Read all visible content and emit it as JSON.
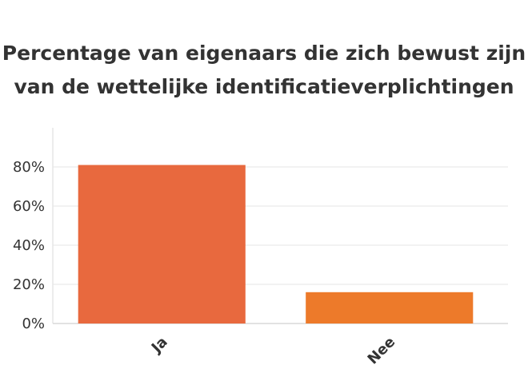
{
  "chart_data": {
    "type": "bar",
    "title_lines": [
      "Percentage van eigenaars die zich bewust zijn",
      "van de wettelijke identificatieverplichtingen"
    ],
    "categories": [
      "Ja",
      "Nee"
    ],
    "values": [
      81,
      16
    ],
    "bar_colors": [
      "#E8693E",
      "#ED7A2A"
    ],
    "ylim": [
      0,
      100
    ],
    "yticks": [
      0,
      20,
      40,
      60,
      80
    ],
    "ytick_labels": [
      "0%",
      "20%",
      "40%",
      "60%",
      "80%"
    ],
    "grid": true,
    "grid_color": "#e6e6e6",
    "axis_color": "#d9d9d9",
    "xlabel": "",
    "ylabel": ""
  }
}
